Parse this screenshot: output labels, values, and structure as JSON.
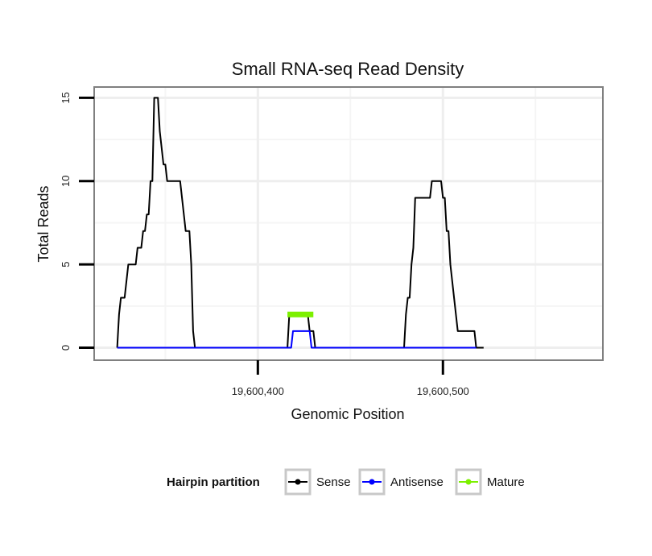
{
  "chart_data": {
    "type": "line",
    "title": "Small RNA-seq Read Density",
    "xlabel": "Genomic Position",
    "ylabel": "Total Reads",
    "xlim": [
      19600312,
      19600586
    ],
    "ylim": [
      -0.7,
      15.6
    ],
    "x_ticks": [
      {
        "value": 19600400,
        "label": "19,600,400"
      },
      {
        "value": 19600500,
        "label": "19,600,500"
      }
    ],
    "y_ticks": [
      {
        "value": 0,
        "label": "0"
      },
      {
        "value": 5,
        "label": "5"
      },
      {
        "value": 10,
        "label": "10"
      },
      {
        "value": 15,
        "label": "15"
      }
    ],
    "grid": true,
    "legend": {
      "title": "Hairpin partition",
      "position": "bottom",
      "entries": [
        "Sense",
        "Antisense",
        "Mature"
      ]
    },
    "series": [
      {
        "name": "Sense",
        "color": "#000000",
        "points": [
          [
            19600324,
            0
          ],
          [
            19600325,
            2
          ],
          [
            19600326,
            3
          ],
          [
            19600328,
            3
          ],
          [
            19600330,
            5
          ],
          [
            19600334,
            5
          ],
          [
            19600335,
            6
          ],
          [
            19600337,
            6
          ],
          [
            19600338,
            7
          ],
          [
            19600339,
            7
          ],
          [
            19600340,
            8
          ],
          [
            19600341,
            8
          ],
          [
            19600342,
            10
          ],
          [
            19600343,
            10
          ],
          [
            19600344,
            15
          ],
          [
            19600346,
            15
          ],
          [
            19600347,
            13
          ],
          [
            19600349,
            11
          ],
          [
            19600350,
            11
          ],
          [
            19600351,
            10
          ],
          [
            19600358,
            10
          ],
          [
            19600359,
            9
          ],
          [
            19600360,
            8
          ],
          [
            19600361,
            7
          ],
          [
            19600363,
            7
          ],
          [
            19600364,
            5
          ],
          [
            19600365,
            1
          ],
          [
            19600366,
            0
          ],
          [
            19600416,
            0
          ],
          [
            19600417,
            2
          ],
          [
            19600427,
            2
          ],
          [
            19600428,
            1
          ],
          [
            19600430,
            1
          ],
          [
            19600431,
            0
          ],
          [
            19600479,
            0
          ],
          [
            19600480,
            2
          ],
          [
            19600481,
            3
          ],
          [
            19600482,
            3
          ],
          [
            19600483,
            5
          ],
          [
            19600484,
            6
          ],
          [
            19600485,
            9
          ],
          [
            19600493,
            9
          ],
          [
            19600494,
            10
          ],
          [
            19600499,
            10
          ],
          [
            19600500,
            9
          ],
          [
            19600501,
            9
          ],
          [
            19600502,
            7
          ],
          [
            19600503,
            7
          ],
          [
            19600504,
            5
          ],
          [
            19600507,
            2
          ],
          [
            19600508,
            1
          ],
          [
            19600517,
            1
          ],
          [
            19600518,
            0
          ],
          [
            19600522,
            0
          ]
        ]
      },
      {
        "name": "Antisense",
        "color": "#0000ff",
        "points": [
          [
            19600324,
            0
          ],
          [
            19600418,
            0
          ],
          [
            19600419,
            1
          ],
          [
            19600428,
            1
          ],
          [
            19600429,
            0
          ],
          [
            19600518,
            0
          ]
        ]
      },
      {
        "name": "Mature",
        "color": "#7cf000",
        "points": [
          [
            19600416,
            2
          ],
          [
            19600430,
            2
          ]
        ]
      }
    ]
  }
}
